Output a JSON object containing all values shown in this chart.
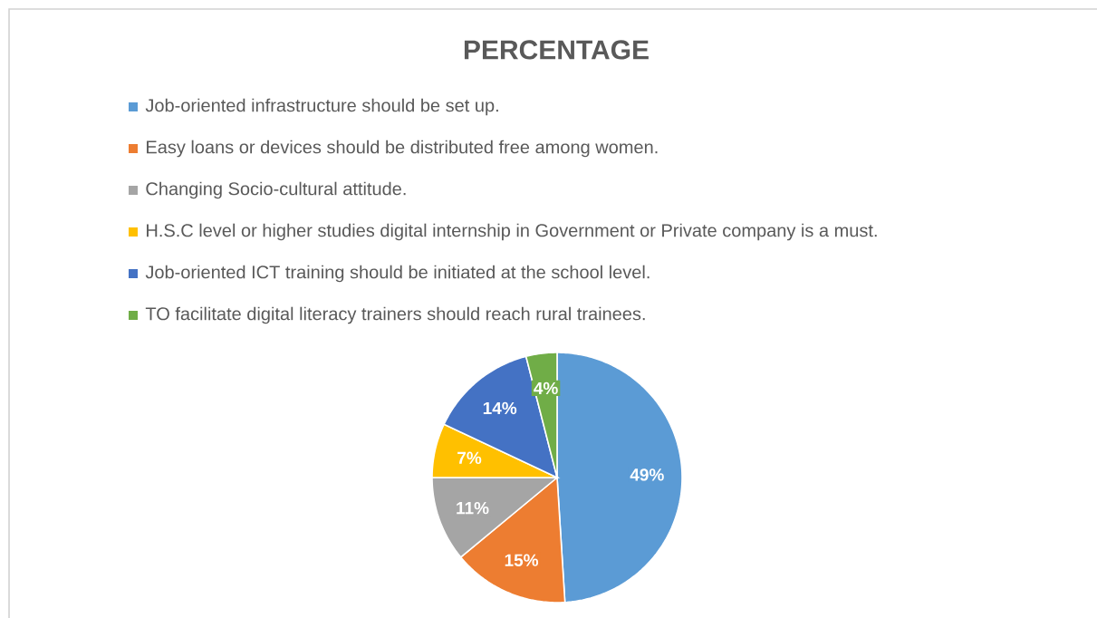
{
  "chart_data": {
    "type": "pie",
    "title": "PERCENTAGE",
    "categories": [
      "Job-oriented infrastructure should be set up.",
      "Easy loans or devices should be distributed free among women.",
      "Changing Socio-cultural attitude.",
      "H.S.C level or higher studies digital internship in Government or Private company is a must.",
      "Job-oriented ICT training should be initiated at the school level.",
      "TO facilitate digital literacy trainers should reach rural trainees."
    ],
    "values": [
      49,
      15,
      11,
      7,
      14,
      4
    ],
    "colors": [
      "#5b9bd5",
      "#ed7d31",
      "#a5a5a5",
      "#ffc000",
      "#4472c4",
      "#70ad47"
    ],
    "value_labels": [
      "49%",
      "15%",
      "11%",
      "7%",
      "14%",
      "4%"
    ],
    "legend": "top"
  }
}
